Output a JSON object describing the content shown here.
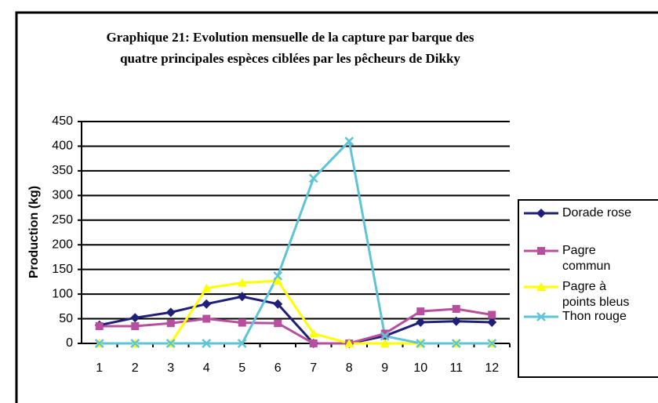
{
  "chart_data": {
    "type": "line",
    "title": "Graphique 21: Evolution mensuelle de la capture par barque des quatre principales espèces ciblées par les pêcheurs de Dikky",
    "ylabel": "Production (kg)",
    "categories": [
      "1",
      "2",
      "3",
      "4",
      "5",
      "6",
      "7",
      "8",
      "9",
      "10",
      "11",
      "12"
    ],
    "series": [
      {
        "name": "Dorade rose",
        "color": "#1f1f7a",
        "marker": "diamond",
        "values": [
          37,
          52,
          63,
          80,
          95,
          80,
          0,
          0,
          15,
          43,
          45,
          43
        ]
      },
      {
        "name": "Pagre commun",
        "color": "#b84f9e",
        "marker": "square",
        "values": [
          35,
          35,
          41,
          50,
          42,
          41,
          0,
          0,
          20,
          65,
          70,
          58
        ]
      },
      {
        "name": "Pagre à points bleus",
        "color": "#ffff00",
        "marker": "triangle",
        "values": [
          0,
          0,
          0,
          112,
          123,
          127,
          20,
          0,
          0,
          0,
          0,
          0
        ]
      },
      {
        "name": "Thon rouge",
        "color": "#5ec4d6",
        "marker": "x",
        "values": [
          0,
          0,
          0,
          0,
          0,
          137,
          335,
          410,
          15,
          0,
          0,
          0
        ]
      }
    ],
    "ylim": [
      0,
      450
    ],
    "yticks": [
      0,
      50,
      100,
      150,
      200,
      250,
      300,
      350,
      400,
      450
    ],
    "grid": true,
    "legend": "right"
  }
}
